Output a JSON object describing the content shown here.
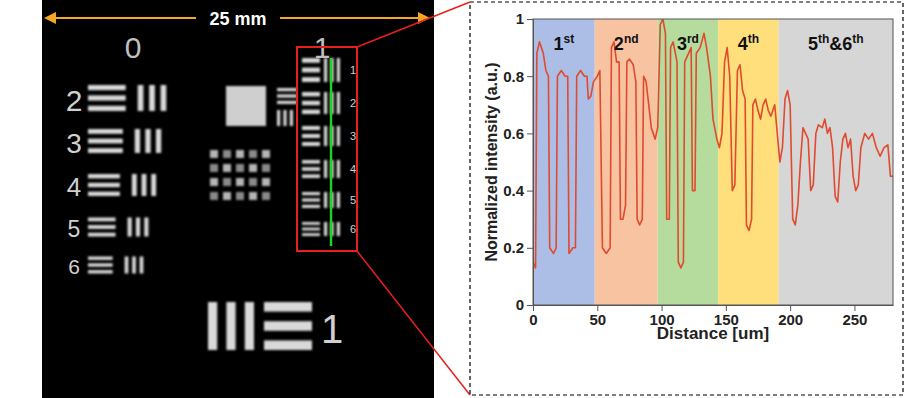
{
  "chart_data": {
    "type": "line",
    "x_label": "Distance [um]",
    "y_label": "Normalized intensity (a.u.)",
    "xlim": [
      0,
      280
    ],
    "xticks": [
      0,
      50,
      100,
      150,
      200,
      250
    ],
    "ylim": [
      0,
      1
    ],
    "yticks": [
      0,
      0.2,
      0.4,
      0.6,
      0.8,
      1
    ],
    "grid": false,
    "bands": [
      {
        "label": "1st",
        "range": [
          0,
          48
        ],
        "color": "#9db3e0"
      },
      {
        "label": "2nd",
        "range": [
          48,
          97
        ],
        "color": "#f7b98f"
      },
      {
        "label": "3rd",
        "range": [
          97,
          144
        ],
        "color": "#a8d58c"
      },
      {
        "label": "4th",
        "range": [
          144,
          191
        ],
        "color": "#ffd965"
      },
      {
        "label": "5th&6th",
        "range": [
          191,
          280
        ],
        "color": "#cfcfcf"
      }
    ],
    "x": [
      0,
      2,
      3,
      5,
      8,
      10,
      12,
      13,
      16,
      18,
      19,
      22,
      25,
      27,
      28,
      31,
      33,
      34,
      37,
      40,
      42,
      43,
      45,
      47,
      50,
      52,
      54,
      57,
      60,
      61,
      63,
      65,
      67,
      68,
      70,
      72,
      73,
      75,
      78,
      80,
      81,
      83,
      85,
      86,
      88,
      92,
      95,
      97,
      99,
      101,
      103,
      104,
      106,
      107,
      109,
      112,
      113,
      115,
      117,
      118,
      121,
      123,
      124,
      126,
      127,
      130,
      133,
      135,
      138,
      140,
      143,
      145,
      147,
      149,
      151,
      153,
      155,
      157,
      159,
      161,
      163,
      165,
      166,
      168,
      170,
      171,
      173,
      175,
      177,
      179,
      181,
      183,
      185,
      188,
      190,
      192,
      194,
      196,
      198,
      200,
      202,
      204,
      206,
      208,
      210,
      212,
      214,
      216,
      218,
      220,
      222,
      225,
      227,
      229,
      231,
      233,
      235,
      237,
      239,
      241,
      243,
      245,
      247,
      249,
      251,
      253,
      255,
      258,
      261,
      264,
      267,
      270,
      273,
      276,
      278,
      280
    ],
    "series": [
      {
        "color": "#e04a2e",
        "values": [
          0.15,
          0.13,
          0.88,
          0.92,
          0.88,
          0.82,
          0.8,
          0.2,
          0.18,
          0.2,
          0.8,
          0.82,
          0.8,
          0.8,
          0.18,
          0.2,
          0.2,
          0.8,
          0.82,
          0.8,
          0.8,
          0.72,
          0.73,
          0.78,
          0.8,
          0.82,
          0.2,
          0.18,
          0.2,
          0.9,
          0.92,
          0.85,
          0.85,
          0.3,
          0.3,
          0.35,
          0.85,
          0.86,
          0.84,
          0.78,
          0.3,
          0.28,
          0.3,
          0.8,
          0.78,
          0.62,
          0.58,
          0.62,
          0.98,
          1,
          0.95,
          0.3,
          0.3,
          0.9,
          0.92,
          0.85,
          0.15,
          0.13,
          0.15,
          0.85,
          0.88,
          0.9,
          0.4,
          0.4,
          0.88,
          0.9,
          0.95,
          0.9,
          0.8,
          0.65,
          0.58,
          0.55,
          0.6,
          0.85,
          0.9,
          0.8,
          0.4,
          0.42,
          0.82,
          0.84,
          0.75,
          0.72,
          0.28,
          0.26,
          0.3,
          0.7,
          0.72,
          0.68,
          0.65,
          0.7,
          0.72,
          0.68,
          0.66,
          0.7,
          0.6,
          0.5,
          0.55,
          0.72,
          0.75,
          0.7,
          0.3,
          0.28,
          0.35,
          0.5,
          0.62,
          0.6,
          0.58,
          0.4,
          0.42,
          0.6,
          0.63,
          0.62,
          0.65,
          0.6,
          0.62,
          0.55,
          0.38,
          0.36,
          0.5,
          0.58,
          0.6,
          0.55,
          0.58,
          0.45,
          0.4,
          0.42,
          0.55,
          0.6,
          0.58,
          0.6,
          0.55,
          0.52,
          0.55,
          0.56,
          0.45,
          0.45
        ]
      }
    ]
  },
  "image": {
    "scale_label": "25 mm",
    "group_labels": [
      "0",
      "1"
    ],
    "element_labels": [
      "2",
      "3",
      "4",
      "5",
      "6"
    ],
    "zoom_element_labels": [
      "1",
      "2",
      "3",
      "4",
      "5",
      "6"
    ],
    "bottom_label": "1"
  }
}
